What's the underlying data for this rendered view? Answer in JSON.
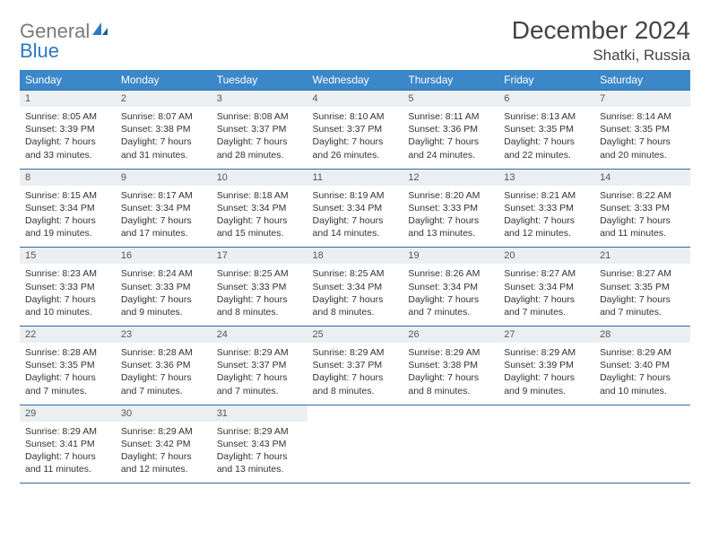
{
  "logo": {
    "word1": "General",
    "word2": "Blue"
  },
  "title": "December 2024",
  "location": "Shatki, Russia",
  "colors": {
    "header_bg": "#3b87c8",
    "header_fg": "#ffffff",
    "daynum_bg": "#eceff1",
    "row_border": "#2e6ca5",
    "logo_gray": "#7a7a7a",
    "logo_blue": "#2d79c0",
    "page_bg": "#ffffff"
  },
  "weekdays": [
    "Sunday",
    "Monday",
    "Tuesday",
    "Wednesday",
    "Thursday",
    "Friday",
    "Saturday"
  ],
  "weeks": [
    [
      {
        "n": "1",
        "sr": "8:05 AM",
        "ss": "3:39 PM",
        "dl": "7 hours and 33 minutes."
      },
      {
        "n": "2",
        "sr": "8:07 AM",
        "ss": "3:38 PM",
        "dl": "7 hours and 31 minutes."
      },
      {
        "n": "3",
        "sr": "8:08 AM",
        "ss": "3:37 PM",
        "dl": "7 hours and 28 minutes."
      },
      {
        "n": "4",
        "sr": "8:10 AM",
        "ss": "3:37 PM",
        "dl": "7 hours and 26 minutes."
      },
      {
        "n": "5",
        "sr": "8:11 AM",
        "ss": "3:36 PM",
        "dl": "7 hours and 24 minutes."
      },
      {
        "n": "6",
        "sr": "8:13 AM",
        "ss": "3:35 PM",
        "dl": "7 hours and 22 minutes."
      },
      {
        "n": "7",
        "sr": "8:14 AM",
        "ss": "3:35 PM",
        "dl": "7 hours and 20 minutes."
      }
    ],
    [
      {
        "n": "8",
        "sr": "8:15 AM",
        "ss": "3:34 PM",
        "dl": "7 hours and 19 minutes."
      },
      {
        "n": "9",
        "sr": "8:17 AM",
        "ss": "3:34 PM",
        "dl": "7 hours and 17 minutes."
      },
      {
        "n": "10",
        "sr": "8:18 AM",
        "ss": "3:34 PM",
        "dl": "7 hours and 15 minutes."
      },
      {
        "n": "11",
        "sr": "8:19 AM",
        "ss": "3:34 PM",
        "dl": "7 hours and 14 minutes."
      },
      {
        "n": "12",
        "sr": "8:20 AM",
        "ss": "3:33 PM",
        "dl": "7 hours and 13 minutes."
      },
      {
        "n": "13",
        "sr": "8:21 AM",
        "ss": "3:33 PM",
        "dl": "7 hours and 12 minutes."
      },
      {
        "n": "14",
        "sr": "8:22 AM",
        "ss": "3:33 PM",
        "dl": "7 hours and 11 minutes."
      }
    ],
    [
      {
        "n": "15",
        "sr": "8:23 AM",
        "ss": "3:33 PM",
        "dl": "7 hours and 10 minutes."
      },
      {
        "n": "16",
        "sr": "8:24 AM",
        "ss": "3:33 PM",
        "dl": "7 hours and 9 minutes."
      },
      {
        "n": "17",
        "sr": "8:25 AM",
        "ss": "3:33 PM",
        "dl": "7 hours and 8 minutes."
      },
      {
        "n": "18",
        "sr": "8:25 AM",
        "ss": "3:34 PM",
        "dl": "7 hours and 8 minutes."
      },
      {
        "n": "19",
        "sr": "8:26 AM",
        "ss": "3:34 PM",
        "dl": "7 hours and 7 minutes."
      },
      {
        "n": "20",
        "sr": "8:27 AM",
        "ss": "3:34 PM",
        "dl": "7 hours and 7 minutes."
      },
      {
        "n": "21",
        "sr": "8:27 AM",
        "ss": "3:35 PM",
        "dl": "7 hours and 7 minutes."
      }
    ],
    [
      {
        "n": "22",
        "sr": "8:28 AM",
        "ss": "3:35 PM",
        "dl": "7 hours and 7 minutes."
      },
      {
        "n": "23",
        "sr": "8:28 AM",
        "ss": "3:36 PM",
        "dl": "7 hours and 7 minutes."
      },
      {
        "n": "24",
        "sr": "8:29 AM",
        "ss": "3:37 PM",
        "dl": "7 hours and 7 minutes."
      },
      {
        "n": "25",
        "sr": "8:29 AM",
        "ss": "3:37 PM",
        "dl": "7 hours and 8 minutes."
      },
      {
        "n": "26",
        "sr": "8:29 AM",
        "ss": "3:38 PM",
        "dl": "7 hours and 8 minutes."
      },
      {
        "n": "27",
        "sr": "8:29 AM",
        "ss": "3:39 PM",
        "dl": "7 hours and 9 minutes."
      },
      {
        "n": "28",
        "sr": "8:29 AM",
        "ss": "3:40 PM",
        "dl": "7 hours and 10 minutes."
      }
    ],
    [
      {
        "n": "29",
        "sr": "8:29 AM",
        "ss": "3:41 PM",
        "dl": "7 hours and 11 minutes."
      },
      {
        "n": "30",
        "sr": "8:29 AM",
        "ss": "3:42 PM",
        "dl": "7 hours and 12 minutes."
      },
      {
        "n": "31",
        "sr": "8:29 AM",
        "ss": "3:43 PM",
        "dl": "7 hours and 13 minutes."
      },
      null,
      null,
      null,
      null
    ]
  ],
  "labels": {
    "sunrise": "Sunrise:",
    "sunset": "Sunset:",
    "daylight": "Daylight:"
  }
}
